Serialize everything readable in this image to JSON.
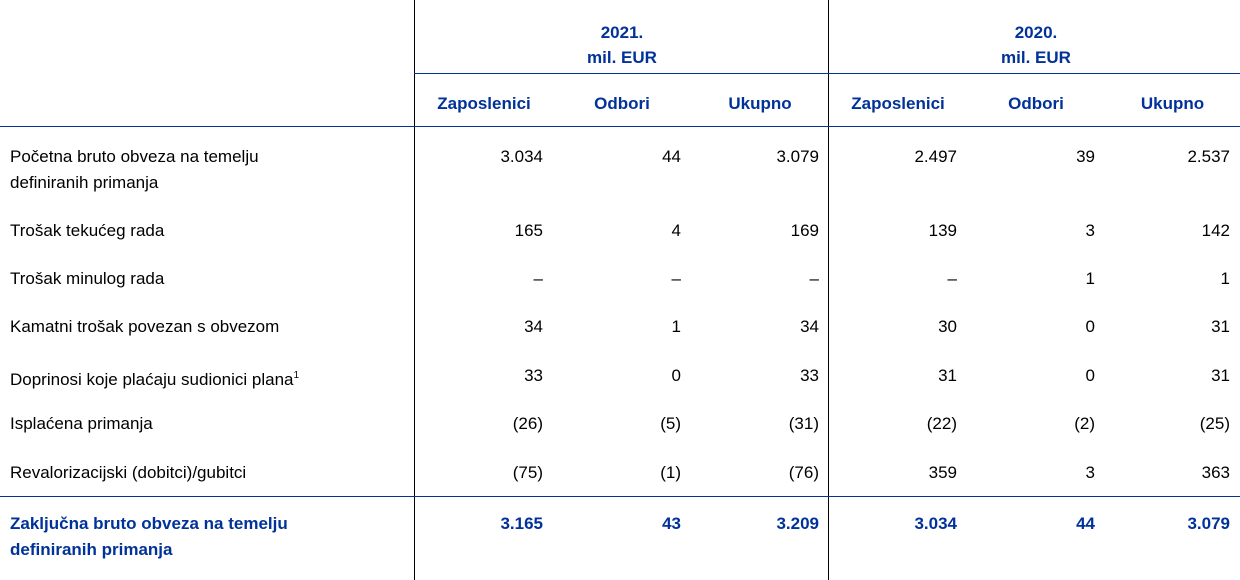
{
  "table": {
    "groups": [
      {
        "year": "2021.",
        "unit": "mil. EUR"
      },
      {
        "year": "2020.",
        "unit": "mil. EUR"
      }
    ],
    "columns": [
      "Zaposlenici",
      "Odbori",
      "Ukupno",
      "Zaposlenici",
      "Odbori",
      "Ukupno"
    ],
    "rows": [
      {
        "label": "Početna bruto obveza na temelju definiranih primanja",
        "values": [
          "3.034",
          "44",
          "3.079",
          "2.497",
          "39",
          "2.537"
        ]
      },
      {
        "label": "Trošak tekućeg rada",
        "values": [
          "165",
          "4",
          "169",
          "139",
          "3",
          "142"
        ]
      },
      {
        "label": "Trošak minulog rada",
        "values": [
          "–",
          "–",
          "–",
          "–",
          "1",
          "1"
        ]
      },
      {
        "label": "Kamatni trošak povezan s obvezom",
        "values": [
          "34",
          "1",
          "34",
          "30",
          "0",
          "31"
        ]
      },
      {
        "label": "Doprinosi koje plaćaju sudionici plana",
        "note": "1",
        "values": [
          "33",
          "0",
          "33",
          "31",
          "0",
          "31"
        ]
      },
      {
        "label": "Isplaćena primanja",
        "values": [
          "(26)",
          "(5)",
          "(31)",
          "(22)",
          "(2)",
          "(25)"
        ]
      },
      {
        "label": "Revalorizacijski (dobitci)/gubitci",
        "values": [
          "(75)",
          "(1)",
          "(76)",
          "359",
          "3",
          "363"
        ]
      }
    ],
    "total": {
      "label": "Zaključna bruto obveza na temelju definiranih primanja",
      "values": [
        "3.165",
        "43",
        "3.209",
        "3.034",
        "44",
        "3.079"
      ]
    }
  }
}
